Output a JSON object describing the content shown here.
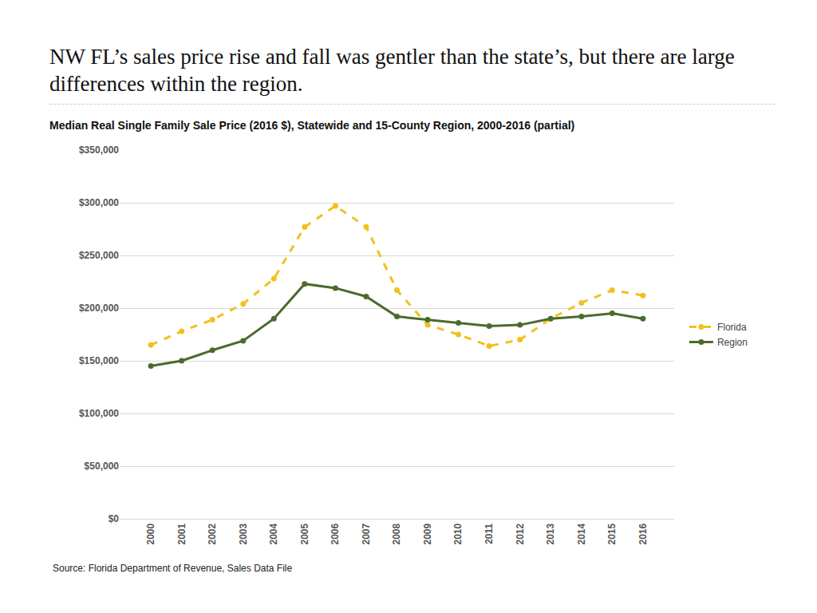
{
  "headline": "NW FL’s sales price rise and fall was gentler than the state’s, but there are large differences within the region.",
  "source": "Source: Florida Department of Revenue, Sales Data File",
  "chart_data": {
    "type": "line",
    "title": "Median Real Single Family Sale Price (2016 $), Statewide and 15-County Region, 2000-2016 (partial)",
    "categories": [
      "2000",
      "2001",
      "2002",
      "2003",
      "2004",
      "2005",
      "2006",
      "2007",
      "2008",
      "2009",
      "2010",
      "2011",
      "2012",
      "2013",
      "2014",
      "2015",
      "2016"
    ],
    "series": [
      {
        "name": "Florida",
        "color": "#F2C01E",
        "line_style": "dashed",
        "marker": "circle",
        "values": [
          165000,
          178000,
          189000,
          204000,
          228000,
          277000,
          297000,
          277000,
          217000,
          184000,
          175000,
          164000,
          170000,
          190000,
          205000,
          217000,
          212000
        ]
      },
      {
        "name": "Region",
        "color": "#4A6B2E",
        "line_style": "solid",
        "marker": "circle",
        "values": [
          145000,
          150000,
          160000,
          169000,
          190000,
          223000,
          219000,
          211000,
          192000,
          189000,
          186000,
          183000,
          184000,
          190000,
          192000,
          195000,
          190000
        ]
      }
    ],
    "ylim": [
      0,
      350000
    ],
    "yticks": [
      {
        "value": 0,
        "label": "$0"
      },
      {
        "value": 50000,
        "label": "$50,000"
      },
      {
        "value": 100000,
        "label": "$100,000"
      },
      {
        "value": 150000,
        "label": "$150,000"
      },
      {
        "value": 200000,
        "label": "$200,000"
      },
      {
        "value": 250000,
        "label": "$250,000"
      },
      {
        "value": 300000,
        "label": "$300,000"
      },
      {
        "value": 350000,
        "label": "$350,000"
      }
    ],
    "grid": true,
    "legend": "right"
  }
}
